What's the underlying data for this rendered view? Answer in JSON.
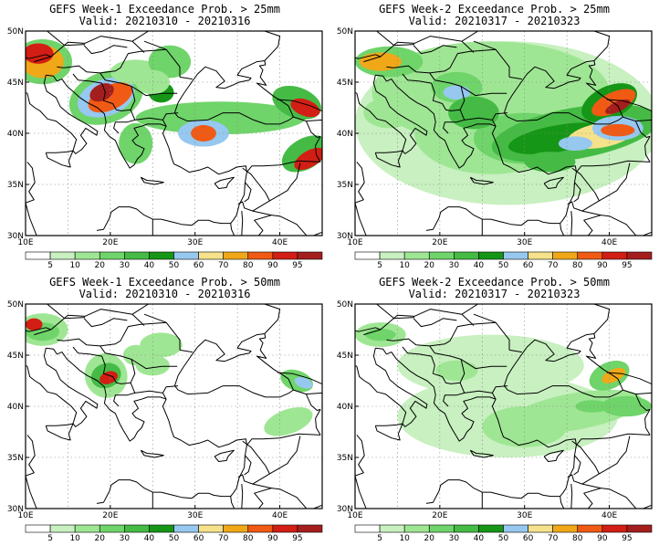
{
  "panels": [
    {
      "title": "GEFS Week-1 Exceedance Prob. > 25mm",
      "valid": "Valid: 20210310 - 20210316"
    },
    {
      "title": "GEFS Week-2 Exceedance Prob. > 25mm",
      "valid": "Valid: 20210317 - 20210323"
    },
    {
      "title": "GEFS Week-1 Exceedance Prob. > 50mm",
      "valid": "Valid: 20210310 - 20210316"
    },
    {
      "title": "GEFS Week-2 Exceedance Prob. > 50mm",
      "valid": "Valid: 20210317 - 20210323"
    }
  ],
  "lat_labels": [
    "50N",
    "45N",
    "40N",
    "35N",
    "30N"
  ],
  "lon_labels": [
    "10E",
    "20E",
    "30E",
    "40E"
  ],
  "colorbar": {
    "labels": [
      "5",
      "10",
      "20",
      "30",
      "40",
      "50",
      "60",
      "70",
      "80",
      "90",
      "95"
    ],
    "colors": [
      "#ffffff",
      "#c8f0c0",
      "#9fe694",
      "#6fd46a",
      "#45bb45",
      "#169616",
      "#96c8f0",
      "#f5e28a",
      "#f0a818",
      "#f05a14",
      "#d21e14",
      "#a51e1e"
    ]
  }
}
